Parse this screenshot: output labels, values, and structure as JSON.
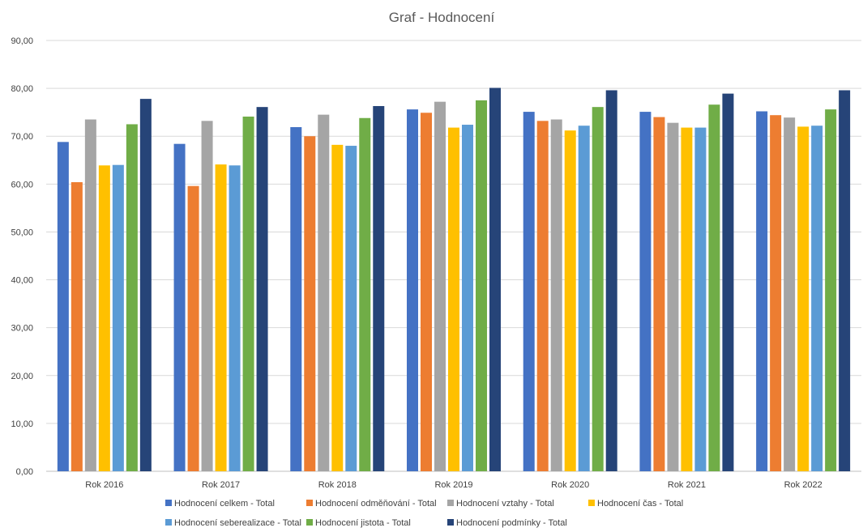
{
  "chart_data": {
    "type": "bar",
    "title": "Graf - Hodnocení",
    "xlabel": "",
    "ylabel": "",
    "ylim": [
      0,
      90
    ],
    "ytick_labels": [
      "0,00",
      "10,00",
      "20,00",
      "30,00",
      "40,00",
      "50,00",
      "60,00",
      "70,00",
      "80,00",
      "90,00"
    ],
    "grid": true,
    "legend_position": "bottom",
    "categories": [
      "Rok 2016",
      "Rok 2017",
      "Rok 2018",
      "Rok 2019",
      "Rok 2020",
      "Rok 2021",
      "Rok 2022"
    ],
    "series": [
      {
        "name": "Hodnocení celkem - Total",
        "color": "#4472C4",
        "values": [
          68.8,
          68.4,
          71.9,
          75.6,
          75.1,
          75.1,
          75.2
        ]
      },
      {
        "name": "Hodnocení odměňování - Total",
        "color": "#ED7D31",
        "values": [
          60.4,
          59.6,
          70.0,
          74.9,
          73.2,
          74.0,
          74.4
        ]
      },
      {
        "name": "Hodnocení vztahy - Total",
        "color": "#A5A5A5",
        "values": [
          73.5,
          73.2,
          74.5,
          77.2,
          73.5,
          72.8,
          73.9
        ]
      },
      {
        "name": "Hodnocení čas - Total",
        "color": "#FFC000",
        "values": [
          63.9,
          64.1,
          68.2,
          71.8,
          71.2,
          71.8,
          72.0
        ]
      },
      {
        "name": "Hodnocení seberealizace - Total",
        "color": "#5B9BD5",
        "values": [
          64.0,
          63.9,
          68.0,
          72.4,
          72.2,
          71.8,
          72.2
        ]
      },
      {
        "name": "Hodnocení jistota - Total",
        "color": "#70AD47",
        "values": [
          72.5,
          74.1,
          73.8,
          77.5,
          76.1,
          76.6,
          75.6
        ]
      },
      {
        "name": "Hodnocení podmínky - Total",
        "color": "#264478",
        "values": [
          77.8,
          76.1,
          76.3,
          80.1,
          79.6,
          78.9,
          79.6
        ]
      }
    ]
  }
}
